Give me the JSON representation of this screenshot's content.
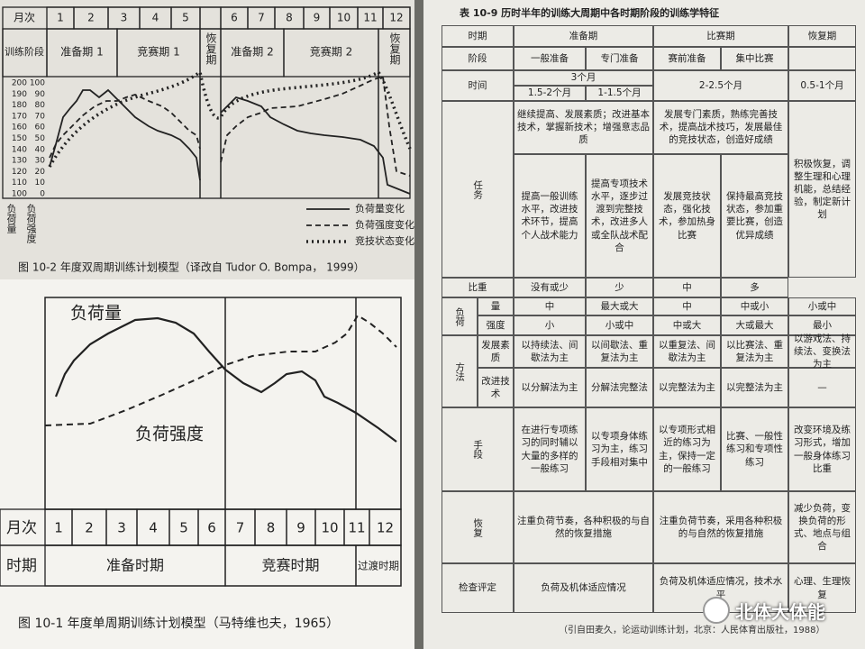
{
  "fig_top": {
    "month_header": "月次",
    "months": [
      "1",
      "2",
      "3",
      "4",
      "5",
      "6",
      "7",
      "8",
      "9",
      "10",
      "11",
      "12"
    ],
    "phase_header": "训练阶段",
    "phases": [
      "准备期 1",
      "竞赛期 1",
      "恢复期",
      "准备期 2",
      "竞赛期 2",
      "恢复期"
    ],
    "y_left": [
      200,
      190,
      180,
      170,
      160,
      150,
      140,
      130,
      120,
      110,
      100
    ],
    "y_right": [
      100,
      90,
      80,
      70,
      60,
      50,
      40,
      30,
      20,
      10,
      0
    ],
    "axis_labels": [
      "负荷量",
      "负荷强度"
    ],
    "legend": [
      "负荷量变化",
      "负荷强度变化",
      "竞技状态变化"
    ],
    "caption": "图 10-2  年度双周期训练计划模型（译改自 Tudor O. Bompa， 1999）"
  },
  "fig_bottom": {
    "curve_labels": [
      "负荷量",
      "负荷强度"
    ],
    "month_header": "月次",
    "months": [
      "1",
      "2",
      "3",
      "4",
      "5",
      "6",
      "7",
      "8",
      "9",
      "10",
      "11",
      "12"
    ],
    "period_header": "时期",
    "periods": [
      "准备时期",
      "竞赛时期",
      "过渡时期"
    ],
    "caption": "图 10-1  年度单周期训练计划模型（马特维也夫，1965）"
  },
  "table": {
    "title": "表 10-9   历时半年的训练大周期中各时期阶段的训练学特征",
    "rows": [
      {
        "label": "时期",
        "cells": [
          "准备期",
          "比赛期",
          "恢复期"
        ]
      },
      {
        "label": "阶段",
        "cells": [
          "一般准备",
          "专门准备",
          "赛前准备",
          "集中比赛"
        ]
      },
      {
        "label": "时间",
        "cells": [
          "3个月",
          "1.5-2个月",
          "1-1.5个月",
          "2-2.5个月",
          "0.5-1个月"
        ]
      },
      {
        "label": "任务",
        "cells": [
          "继续提高、发展素质；改进基本技术，掌握新技术；增强意志品质",
          "发展专门素质，熟练完善技术，提高战术技巧，发展最佳的竞技状态，创造好成绩",
          "提高一般训练水平，改进技术环节，提高个人战术能力",
          "提高专项技术水平，逐步过渡到完整技术，改进多人或全队战术配合",
          "发展竞技状态，强化技术，参加热身比赛",
          "保持最高竞技状态，参加重要比赛，创造优异成绩",
          "积极恢复，调整生理和心理机能，总结经验，制定新计划"
        ]
      },
      {
        "label": "比重",
        "cells": [
          "没有或少",
          "少",
          "中",
          "多"
        ]
      },
      {
        "group": "负荷",
        "label": "量",
        "cells": [
          "中",
          "最大或大",
          "中",
          "中或小",
          "小或中"
        ]
      },
      {
        "label": "强度",
        "cells": [
          "小",
          "小或中",
          "中或大",
          "大或最大",
          "最小"
        ]
      },
      {
        "group": "方法",
        "label": "发展素质",
        "cells": [
          "以持续法、间歇法为主",
          "以间歇法、重复法为主",
          "以重复法、间歇法为主",
          "以比赛法、重复法为主",
          "以游戏法、持续法、变换法为主"
        ]
      },
      {
        "label": "改进技术",
        "cells": [
          "以分解法为主",
          "分解法完整法",
          "以完整法为主",
          "以完整法为主",
          "—"
        ]
      },
      {
        "label": "手段",
        "cells": [
          "在进行专项练习的同时辅以大量的多样的一般练习",
          "以专项身体练习为主，练习手段相对集中",
          "以专项形式相近的练习为主，保持一定的一般练习",
          "比赛、一般性练习和专项性练习",
          "改变环境及练习形式，增加一般身体练习比重"
        ]
      },
      {
        "label": "恢复",
        "cells": [
          "注重负荷节奏，各种积极的与自然的恢复措施",
          "注重负荷节奏，采用各种积极的与自然的恢复措施",
          "减少负荷，变换负荷的形式、地点与组合"
        ]
      },
      {
        "label": "检查评定",
        "cells": [
          "负荷及机体适应情况",
          "负荷及机体适应情况，技术水平",
          "心理、生理恢复"
        ]
      }
    ],
    "source": "（引自田麦久，论运动训练计划，北京：人民体育出版社，1988）"
  },
  "watermark": "北体大体能"
}
